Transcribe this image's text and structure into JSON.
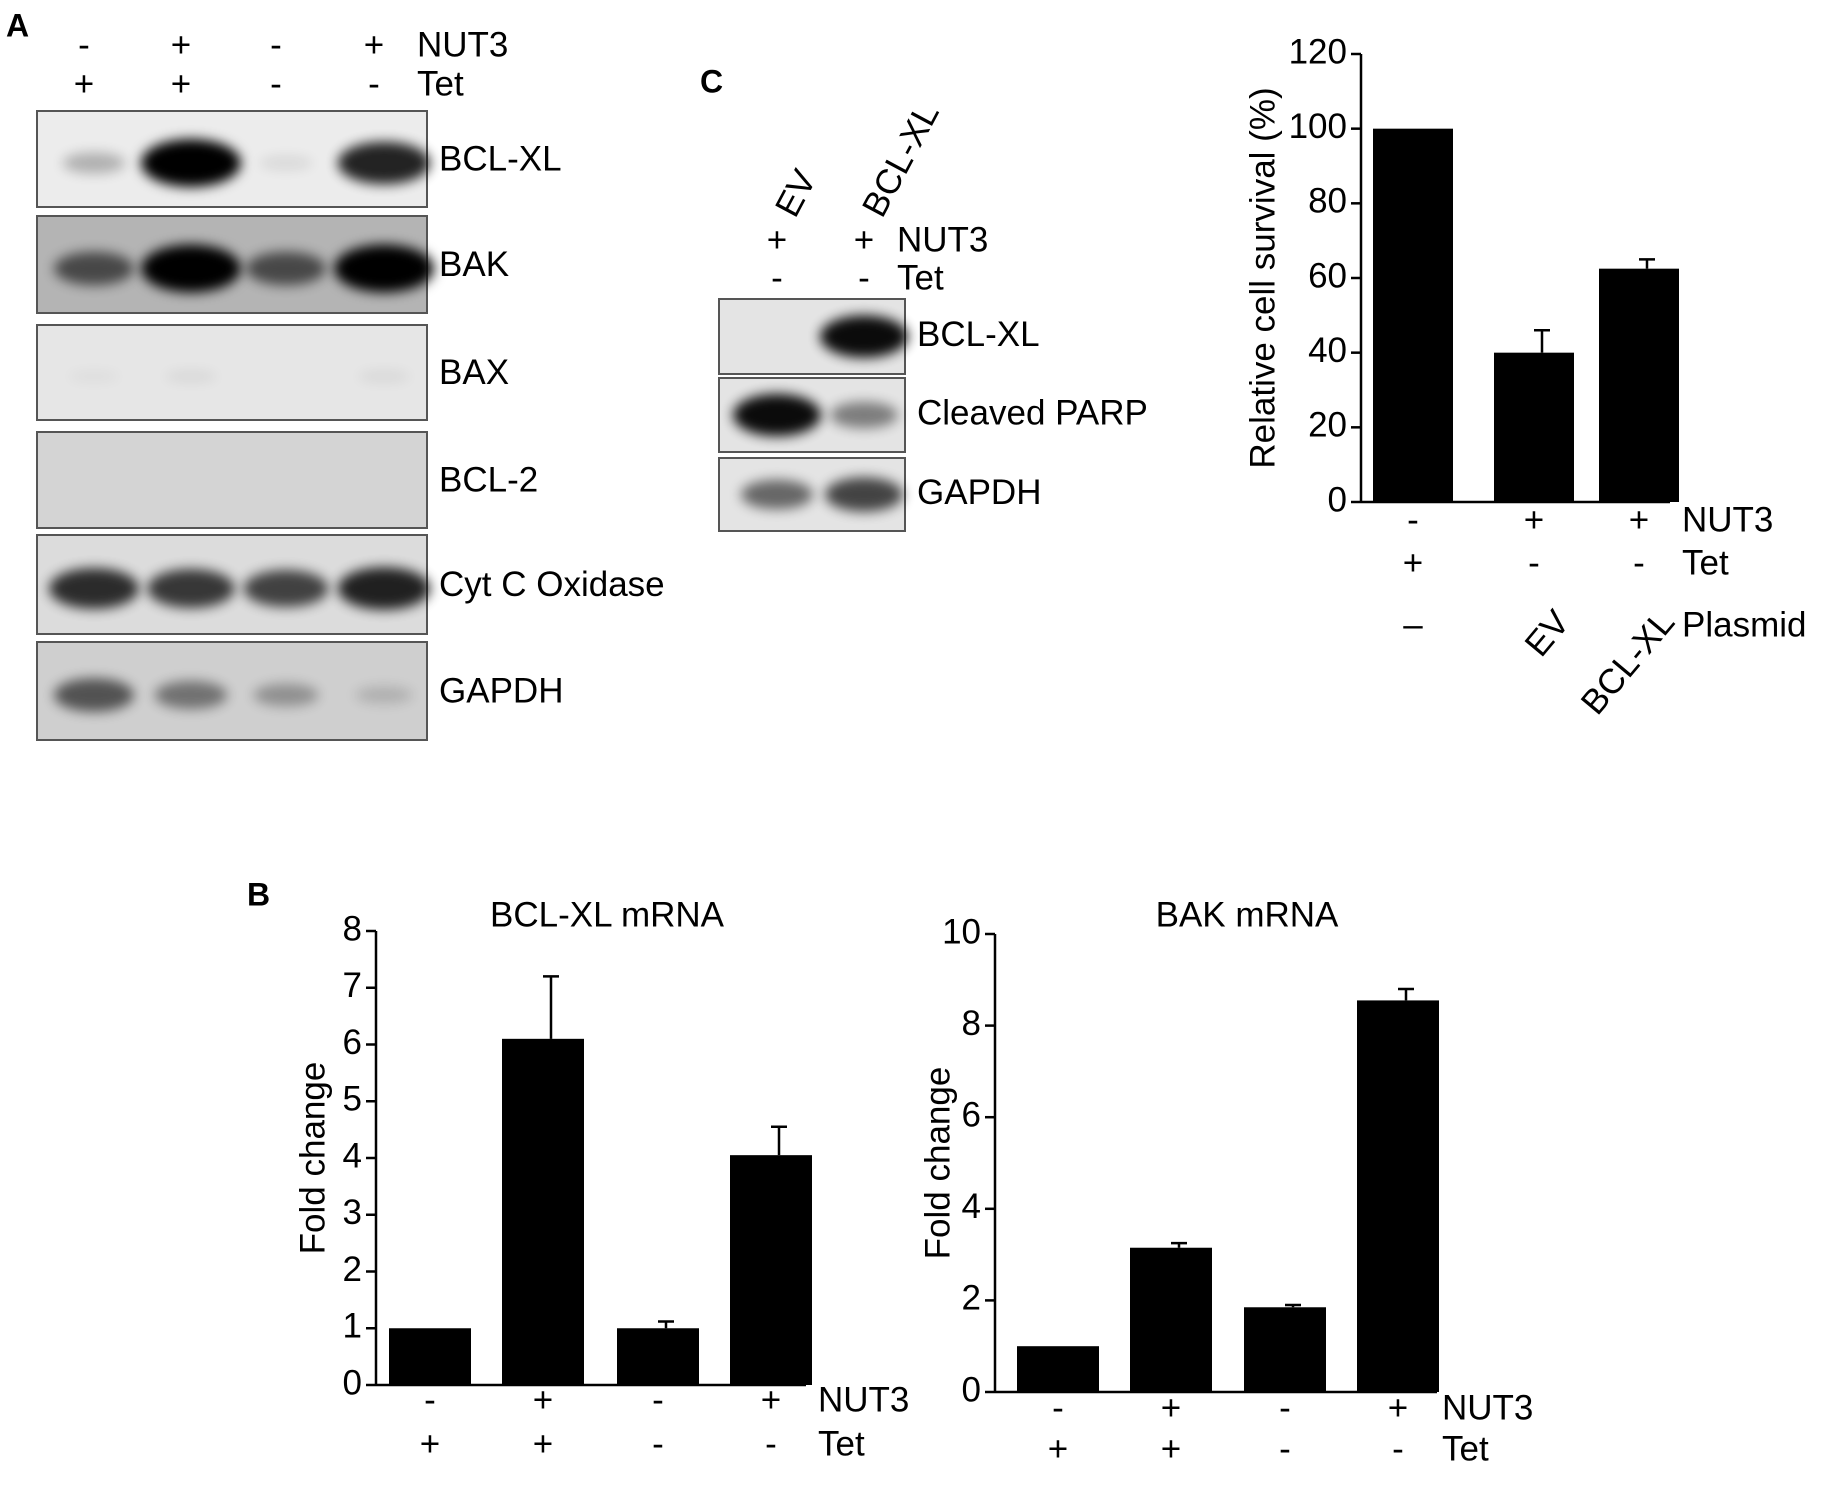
{
  "panel_a": {
    "letter": "A",
    "rows": [
      {
        "name": "NUT3",
        "labels": [
          "-",
          "+",
          "-",
          "+"
        ]
      },
      {
        "name": "Tet",
        "labels": [
          "+",
          "+",
          "-",
          "-"
        ]
      }
    ],
    "bands": [
      "BCL-XL",
      "BAK",
      "BAX",
      "BCL-2",
      "Cyt C Oxidase",
      "GAPDH"
    ]
  },
  "panel_c_blot": {
    "letter": "C",
    "lanes": [
      "EV",
      "BCL-XL"
    ],
    "rows": [
      {
        "name": "NUT3",
        "labels": [
          "+",
          "+"
        ]
      },
      {
        "name": "Tet",
        "labels": [
          "-",
          "-"
        ]
      }
    ],
    "bands": [
      "BCL-XL",
      "Cleaved PARP",
      "GAPDH"
    ]
  },
  "panel_b_letter": "B",
  "chart_data": [
    {
      "type": "bar",
      "title": "BCL-XL mRNA",
      "y_label": "Fold change",
      "color": "#000000",
      "values": [
        1,
        6.1,
        1,
        4.05
      ],
      "errors": [
        0,
        1.1,
        0.12,
        0.5
      ],
      "ylim": [
        0,
        8
      ],
      "yticks": [
        0,
        1,
        2,
        3,
        4,
        5,
        6,
        7,
        8
      ],
      "conditions": [
        {
          "name": "NUT3",
          "labels": [
            "-",
            "+",
            "-",
            "+"
          ]
        },
        {
          "name": "Tet",
          "labels": [
            "+",
            "+",
            "-",
            "-"
          ]
        }
      ]
    },
    {
      "type": "bar",
      "title": "BAK mRNA",
      "y_label": "Fold change",
      "color": "#000000",
      "values": [
        1,
        3.15,
        1.85,
        8.55
      ],
      "errors": [
        0,
        0.1,
        0.05,
        0.25
      ],
      "ylim": [
        0,
        10
      ],
      "yticks": [
        0,
        2,
        4,
        6,
        8,
        10
      ],
      "conditions": [
        {
          "name": "NUT3",
          "labels": [
            "-",
            "+",
            "-",
            "+"
          ]
        },
        {
          "name": "Tet",
          "labels": [
            "+",
            "+",
            "-",
            "-"
          ]
        }
      ]
    },
    {
      "type": "bar",
      "y_label": "Relative cell survival (%)",
      "color": "#000000",
      "values": [
        100,
        40,
        62.5
      ],
      "errors": [
        0,
        6,
        2.5
      ],
      "ylim": [
        0,
        120
      ],
      "yticks": [
        0,
        20,
        40,
        60,
        80,
        100,
        120
      ],
      "conditions": [
        {
          "name": "NUT3",
          "labels": [
            "-",
            "+",
            "+"
          ]
        },
        {
          "name": "Tet",
          "labels": [
            "+",
            "-",
            "-"
          ]
        },
        {
          "name": "Plasmid",
          "labels": [
            "–",
            "EV",
            "BCL-XL"
          ]
        }
      ]
    }
  ]
}
